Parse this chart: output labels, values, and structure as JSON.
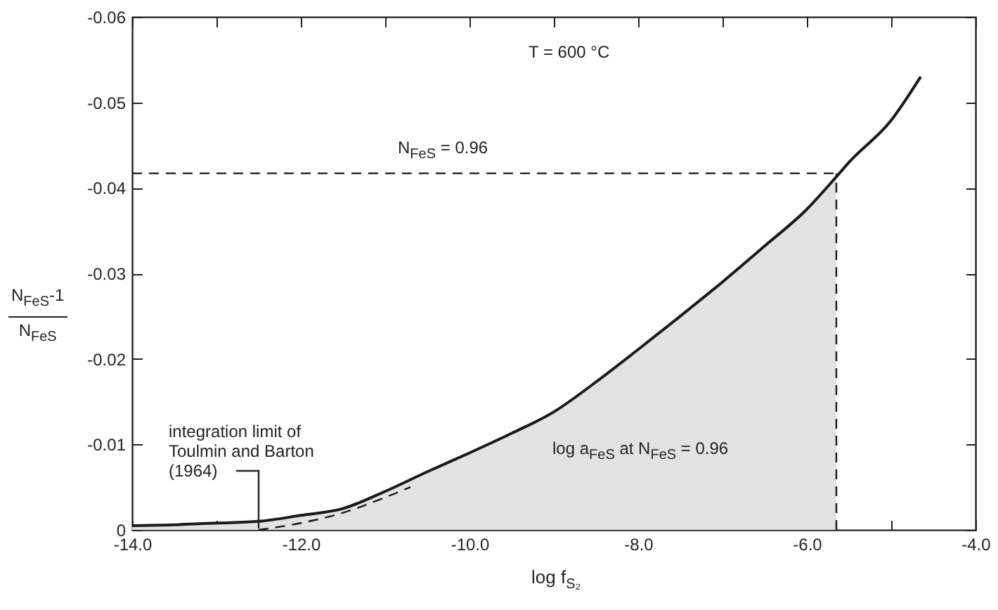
{
  "chart_data": {
    "type": "line",
    "xlabel": "log f$_{S₂}$",
    "ylabel": "N$_{FeS}$-1\nN$_{FeS}$",
    "xlim": [
      -14,
      -4
    ],
    "ylim": [
      0,
      -0.06
    ],
    "xticks": [
      {
        "value": -14,
        "label": "-14.0"
      },
      {
        "value": -13,
        "label": null
      },
      {
        "value": -12,
        "label": "-12.0"
      },
      {
        "value": -11,
        "label": null
      },
      {
        "value": -10,
        "label": "-10.0"
      },
      {
        "value": -9,
        "label": null
      },
      {
        "value": -8,
        "label": "-8.0"
      },
      {
        "value": -7,
        "label": null
      },
      {
        "value": -6,
        "label": "-6.0"
      },
      {
        "value": -5,
        "label": null
      },
      {
        "value": -4,
        "label": "-4.0"
      }
    ],
    "yticks": [
      0,
      -0.01,
      -0.02,
      -0.03,
      -0.04,
      -0.05,
      -0.06
    ],
    "grid": false,
    "marker": "none",
    "series": [
      {
        "type": "area",
        "color": "#e3e3e3",
        "x": [
          -14,
          -13.5,
          -13,
          -12.5,
          -12,
          -11.5,
          -11,
          -10.5,
          -10,
          -9.5,
          -9,
          -8.5,
          -8,
          -7.5,
          -7,
          -6.5,
          -6,
          -5.65
        ],
        "values": [
          -0.0005,
          -0.0006,
          -0.0008,
          -0.001,
          -0.0017,
          -0.0025,
          -0.0045,
          -0.0068,
          -0.009,
          -0.0113,
          -0.0138,
          -0.0173,
          -0.0211,
          -0.025,
          -0.029,
          -0.0332,
          -0.0375,
          -0.0413
        ]
      },
      {
        "color": "#1a1a1a",
        "line_style": "solid",
        "x": [
          -14,
          -13.5,
          -13,
          -12.5,
          -12,
          -11.5,
          -11,
          -10.5,
          -10,
          -9.5,
          -9,
          -8.5,
          -8,
          -7.5,
          -7,
          -6.5,
          -6,
          -5.65,
          -5.5,
          -5,
          -4.65
        ],
        "values": [
          -0.0005,
          -0.0006,
          -0.0008,
          -0.001,
          -0.0017,
          -0.0025,
          -0.0045,
          -0.0068,
          -0.009,
          -0.0113,
          -0.0138,
          -0.0173,
          -0.0211,
          -0.025,
          -0.029,
          -0.0332,
          -0.0375,
          -0.0413,
          -0.043,
          -0.0479,
          -0.053
        ]
      },
      {
        "type": "line",
        "color": "#1a1a1a",
        "line_style": "dashed",
        "x": [
          -12.5,
          -12,
          -11.5,
          -11,
          -10.7
        ],
        "values": [
          0,
          -0.0008,
          -0.002,
          -0.0038,
          -0.005
        ]
      },
      {
        "type": "line",
        "color": "#1a1a1a",
        "line_style": "dashed",
        "x": [
          -14,
          -5.65
        ],
        "values": [
          -0.0417,
          -0.0417
        ]
      },
      {
        "type": "line",
        "color": "#1a1a1a",
        "line_style": "dashed",
        "x": [
          -5.65,
          -5.65
        ],
        "values": [
          0,
          -0.0417
        ]
      }
    ],
    "annotations": [
      "T = 600 °C",
      "N$_{FeS}$ = 0.96",
      {
        "text": "integration limit of\nToulmin and Barton\n(1964)",
        "x": -12.5,
        "y": 0
      },
      "log a$_{FeS}$ at N$_{FeS}$ = 0.96"
    ]
  }
}
